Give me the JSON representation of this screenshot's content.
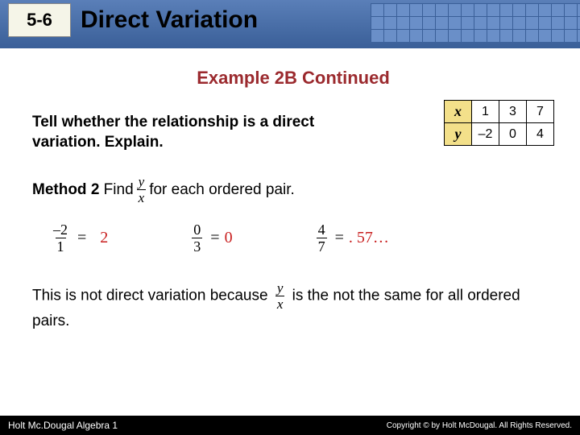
{
  "header": {
    "section_number": "5-6",
    "title": "Direct Variation",
    "bg_gradient": [
      "#5a7fb8",
      "#3a5f98"
    ],
    "grid_color": "#6a8fc8"
  },
  "example_title": "Example 2B Continued",
  "example_title_color": "#9b2a2e",
  "prompt": "Tell whether the relationship is a direct variation. Explain.",
  "table": {
    "header_bg": "#f3e08a",
    "rows": [
      {
        "label": "x",
        "values": [
          "1",
          "3",
          "7"
        ]
      },
      {
        "label": "y",
        "values": [
          "–2",
          "0",
          "4"
        ]
      }
    ]
  },
  "method": {
    "label": "Method 2",
    "verb": "Find",
    "frac_num": "y",
    "frac_den": "x",
    "tail": " for each ordered pair."
  },
  "equations": [
    {
      "num": "–2",
      "den": "1",
      "result": "2",
      "neg": true
    },
    {
      "num": "0",
      "den": "3",
      "result": "0",
      "neg": false
    },
    {
      "num": "4",
      "den": "7",
      "result": ". 57…",
      "neg": false
    }
  ],
  "equation_result_color": "#c81e1e",
  "conclusion": {
    "pre": "This is not direct variation because ",
    "frac_num": "y",
    "frac_den": "x",
    "post": " is the not the same for all ordered pairs."
  },
  "footer": {
    "left": "Holt Mc.Dougal Algebra 1",
    "right": "Copyright © by Holt McDougal. All Rights Reserved."
  }
}
